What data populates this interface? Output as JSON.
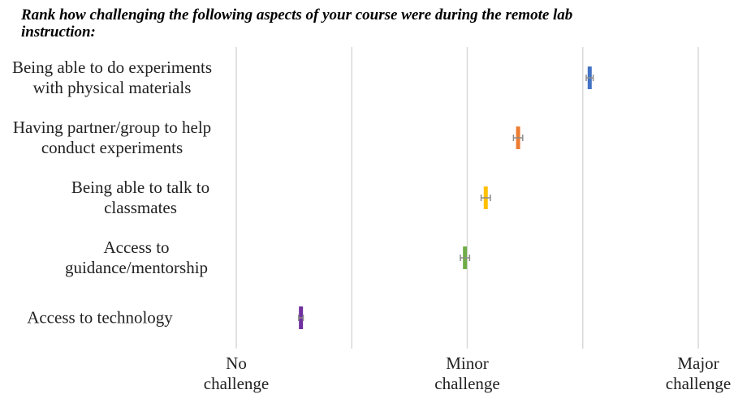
{
  "chart_data": {
    "type": "dot",
    "title": "Rank how challenging the following aspects of your course were during the remote lab instruction:",
    "categories": [
      "Being able to do experiments with physical materials",
      "Having partner/group to help conduct experiments",
      "Being able to talk to classmates",
      "Access to guidance/mentorship",
      "Access to technology"
    ],
    "values": [
      2.53,
      2.22,
      2.08,
      1.99,
      1.28
    ],
    "errors": [
      0.015,
      0.02,
      0.02,
      0.02,
      0.01
    ],
    "colors": [
      "#4472c4",
      "#ed7d31",
      "#ffc000",
      "#70ad47",
      "#7030a0"
    ],
    "error_color": "#8c8c8c",
    "xlim": [
      1,
      3
    ],
    "xticks": [
      {
        "value": 1,
        "label": "No challenge"
      },
      {
        "value": 1.5,
        "label": null
      },
      {
        "value": 2,
        "label": "Minor challenge"
      },
      {
        "value": 2.5,
        "label": null
      },
      {
        "value": 3,
        "label": "Major challenge"
      }
    ],
    "grid": true
  }
}
